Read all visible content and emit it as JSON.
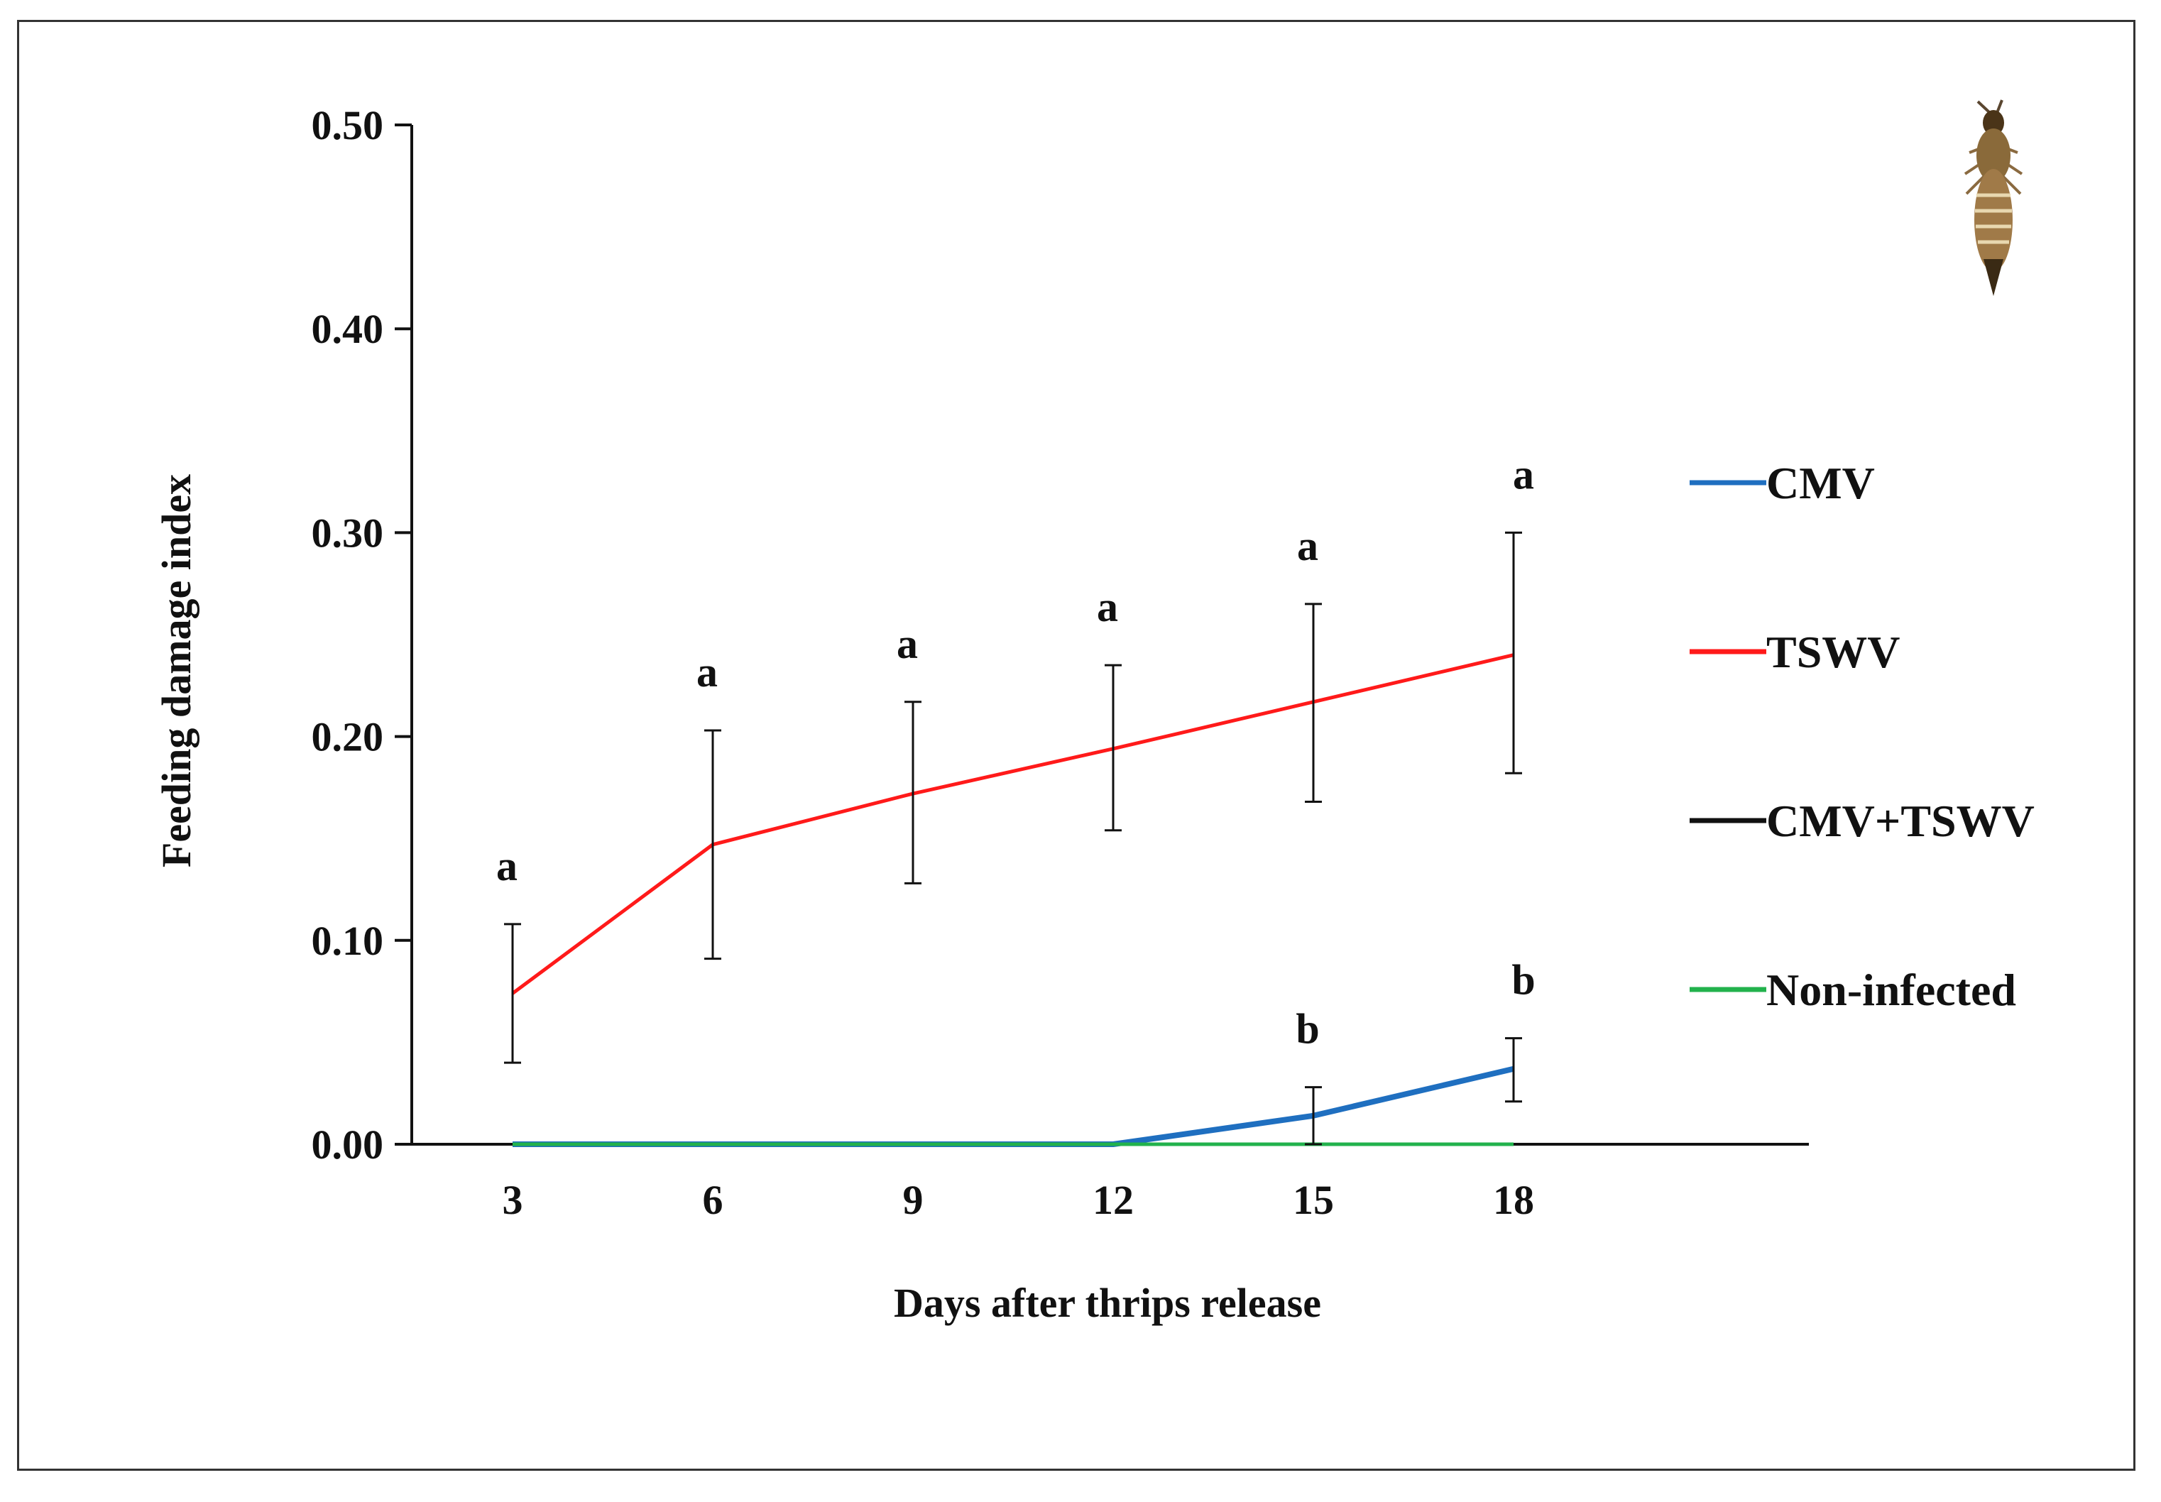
{
  "chart_data": {
    "type": "line",
    "title": "",
    "xlabel": "Days after thrips release",
    "ylabel": "Feeding damage index",
    "x": [
      3,
      6,
      9,
      12,
      15,
      18
    ],
    "x_tick_labels": [
      "3",
      "6",
      "9",
      "12",
      "15",
      "18"
    ],
    "ylim": [
      0,
      0.5
    ],
    "y_ticks": [
      0,
      0.1,
      0.2,
      0.3,
      0.4,
      0.5
    ],
    "y_tick_labels": [
      "0.00",
      "0.10",
      "0.20",
      "0.30",
      "0.40",
      "0.50"
    ],
    "grid": false,
    "legend_position": "right",
    "series": [
      {
        "name": "CMV",
        "color": "#1f6fc0",
        "values": [
          0,
          0,
          0,
          0,
          0.014,
          0.037
        ],
        "error_low": [
          null,
          null,
          null,
          null,
          0,
          0.021
        ],
        "error_high": [
          null,
          null,
          null,
          null,
          0.028,
          0.052
        ],
        "letters": [
          "",
          "",
          "",
          "",
          "b",
          "b"
        ]
      },
      {
        "name": "TSWV",
        "color": "#ff1a1a",
        "values": [
          0.074,
          0.147,
          0.172,
          0.194,
          0.217,
          0.24
        ],
        "error_low": [
          0.04,
          0.091,
          0.128,
          0.154,
          0.168,
          0.182
        ],
        "error_high": [
          0.108,
          0.203,
          0.217,
          0.235,
          0.265,
          0.3
        ],
        "letters": [
          "a",
          "a",
          "a",
          "a",
          "a",
          "a"
        ]
      },
      {
        "name": "CMV+TSWV",
        "color": "#111111",
        "values": [
          0,
          0,
          0,
          0,
          0,
          0
        ]
      },
      {
        "name": "Non-infected",
        "color": "#22b24c",
        "values": [
          0,
          0,
          0,
          0,
          0,
          0
        ]
      }
    ]
  },
  "decoration": {
    "insect_icon": "thrips-icon"
  }
}
